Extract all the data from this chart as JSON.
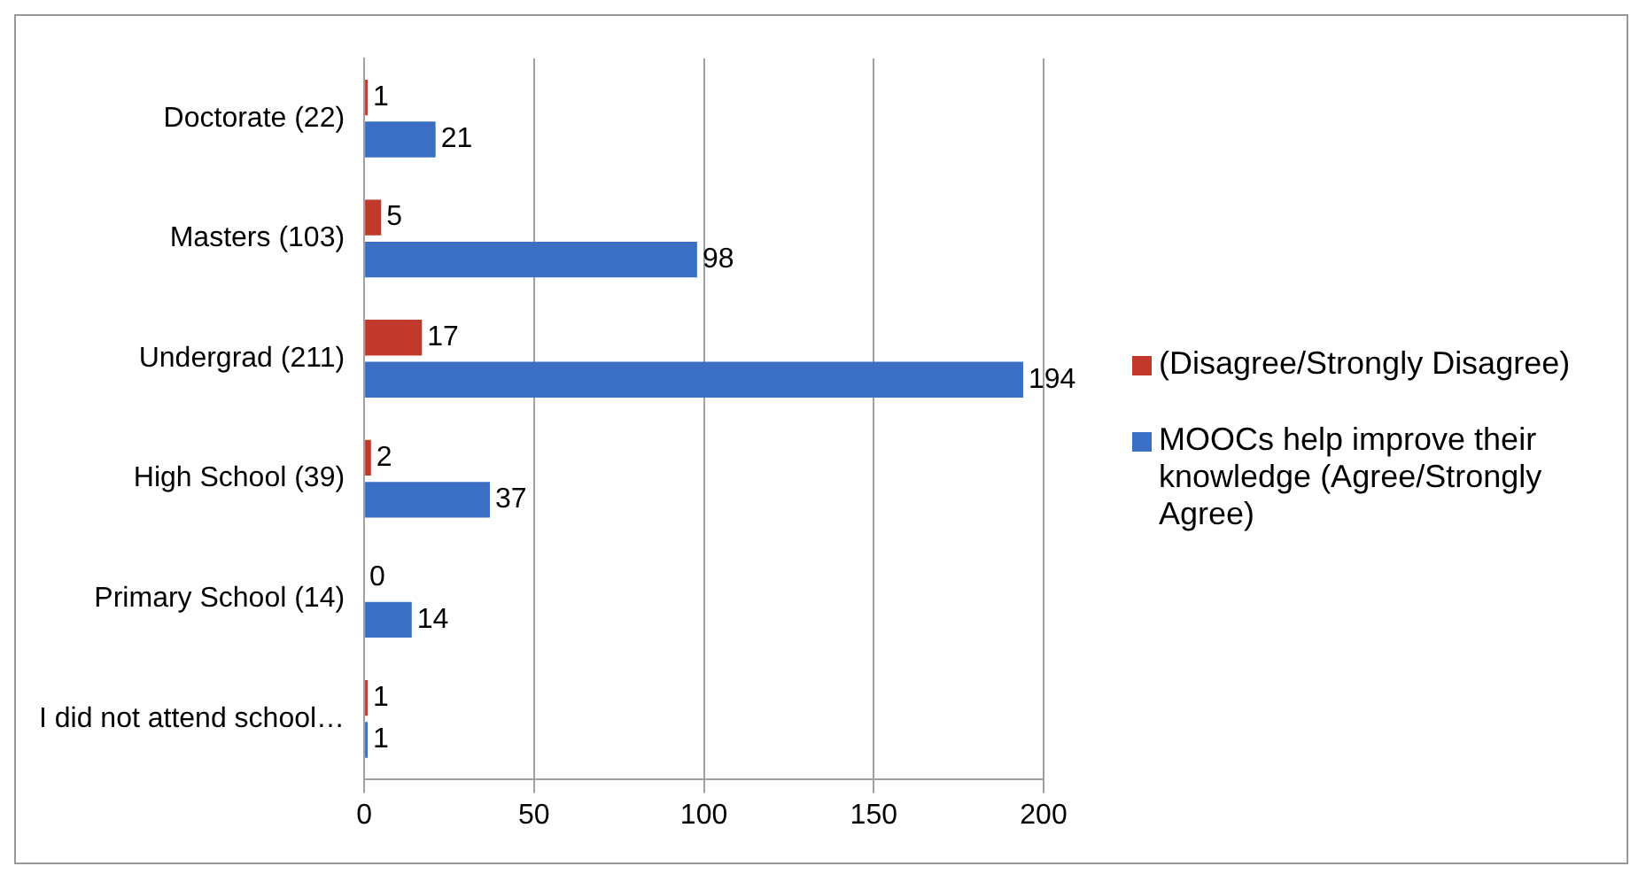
{
  "chart_data": {
    "type": "bar",
    "orientation": "horizontal",
    "categories": [
      "Doctorate (22)",
      "Masters (103)",
      "Undergrad (211)",
      "High School (39)",
      "Primary School (14)",
      "I did not attend school…"
    ],
    "series": [
      {
        "name": "(Disagree/Strongly Disagree)",
        "color": "#c0392b",
        "values": [
          1,
          5,
          17,
          2,
          0,
          1
        ]
      },
      {
        "name": "MOOCs help improve their knowledge (Agree/Strongly Agree)",
        "color": "#3a6fc4",
        "values": [
          21,
          98,
          194,
          37,
          14,
          1
        ]
      }
    ],
    "xlim": [
      0,
      200
    ],
    "xticks": [
      0,
      50,
      100,
      150,
      200
    ],
    "grid": "x",
    "legend": "right",
    "data_labels": true
  }
}
